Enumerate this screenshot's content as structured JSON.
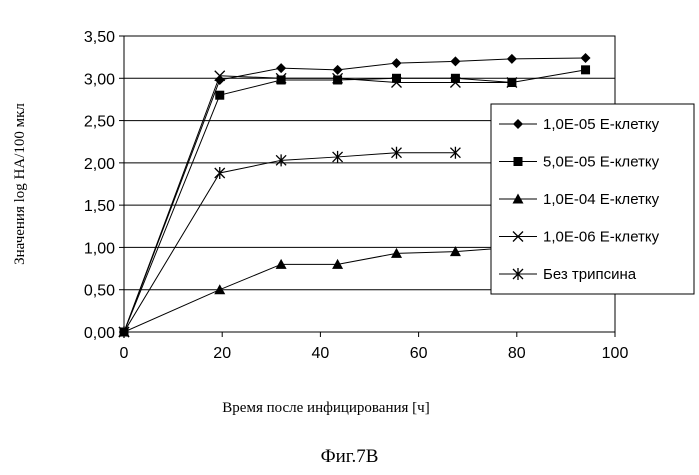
{
  "caption": "Фиг.7В",
  "chart_data": {
    "type": "line",
    "xlabel": "Время после инфицирования [ч]",
    "ylabel": "Значения log HA/100 мкл",
    "xlim": [
      0,
      100
    ],
    "ylim": [
      0,
      3.5
    ],
    "x_ticks": [
      "0",
      "20",
      "40",
      "60",
      "80",
      "100"
    ],
    "y_ticks": [
      "0,00",
      "0,50",
      "1,00",
      "1,50",
      "2,00",
      "2,50",
      "3,00",
      "3,50"
    ],
    "grid": "horizontal",
    "legend_position": "right",
    "series": [
      {
        "name": "1,0E-05 Е-клетку",
        "marker": "diamond",
        "x": [
          0,
          19.5,
          32,
          43.5,
          55.5,
          67.5,
          79,
          94
        ],
        "y": [
          0.0,
          2.98,
          3.12,
          3.1,
          3.18,
          3.2,
          3.23,
          3.24
        ]
      },
      {
        "name": "5,0E-05 Е-клетку",
        "marker": "square",
        "x": [
          0,
          19.5,
          32,
          43.5,
          55.5,
          67.5,
          79,
          94
        ],
        "y": [
          0.0,
          2.8,
          2.98,
          2.98,
          3.0,
          3.0,
          2.95,
          3.1
        ]
      },
      {
        "name": "1,0E-04 Е-клетку",
        "marker": "triangle",
        "x": [
          0,
          19.5,
          32,
          43.5,
          55.5,
          67.5,
          79
        ],
        "y": [
          0.0,
          0.5,
          0.8,
          0.8,
          0.93,
          0.95,
          1.0
        ]
      },
      {
        "name": "1,0E-06 Е-клетку",
        "marker": "x",
        "x": [
          0,
          19.5,
          32,
          43.5,
          55.5,
          67.5,
          79
        ],
        "y": [
          0.0,
          3.03,
          3.0,
          3.0,
          2.95,
          2.95,
          2.95
        ]
      },
      {
        "name": "Без трипсина",
        "marker": "star",
        "x": [
          0,
          19.5,
          32,
          43.5,
          55.5,
          67.5
        ],
        "y": [
          0.0,
          1.88,
          2.03,
          2.07,
          2.12,
          2.12
        ]
      }
    ]
  }
}
